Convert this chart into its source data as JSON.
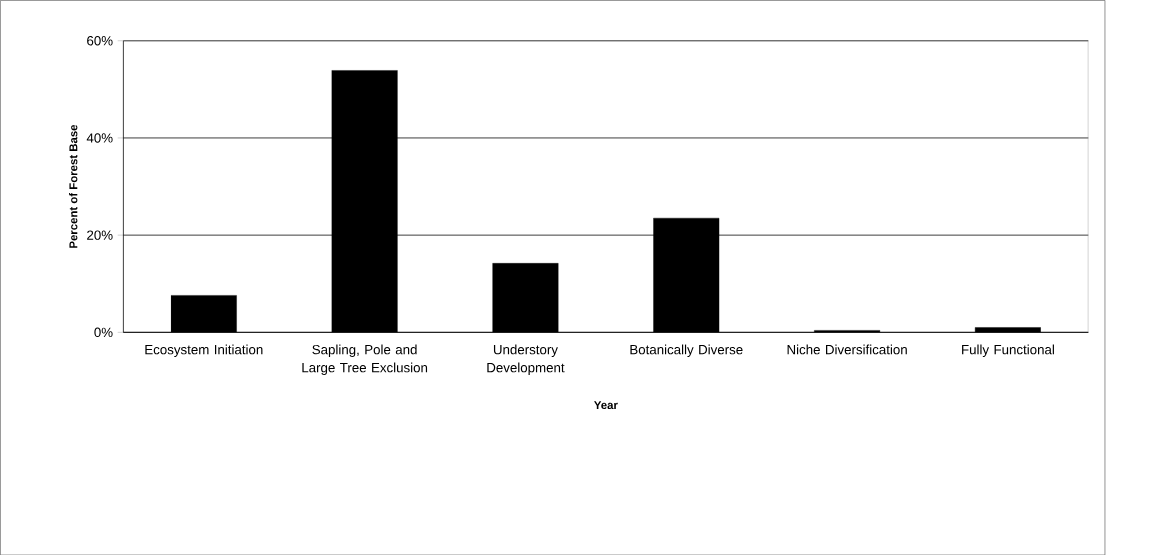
{
  "chart_data": {
    "type": "bar",
    "xlabel": "Year",
    "ylabel": "Percent of Forest Base",
    "categories": [
      "Ecosystem Initiation",
      "Sapling, Pole and Large Tree Exclusion",
      "Understory Development",
      "Botanically Diverse",
      "Niche Diversification",
      "Fully Functional"
    ],
    "values": [
      7.6,
      53.9,
      14.2,
      23.5,
      0.4,
      1.0
    ],
    "color": "#000000",
    "ylim": [
      0,
      60
    ],
    "yticks": [
      {
        "value": 0,
        "label": "0%"
      },
      {
        "value": 20,
        "label": "20%"
      },
      {
        "value": 40,
        "label": "40%"
      },
      {
        "value": 60,
        "label": "60%"
      }
    ],
    "grid": "y"
  }
}
